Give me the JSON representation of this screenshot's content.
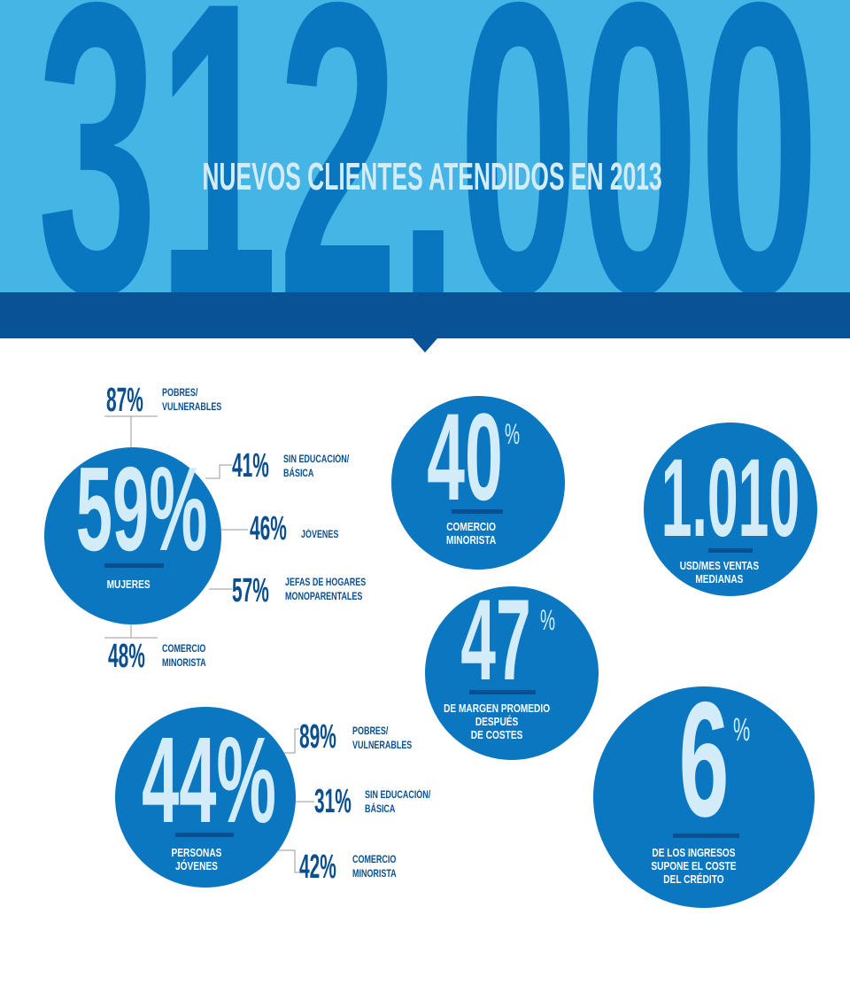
{
  "header": {
    "big_number": "312.000",
    "subtitle": "NUEVOS CLIENTES ATENDIDOS EN 2013"
  },
  "segments": [
    {
      "value": "59%",
      "label": "MUJERES",
      "details": [
        {
          "value": "87%",
          "lines": [
            "POBRES/",
            "VULNERABLES"
          ]
        },
        {
          "value": "41%",
          "lines": [
            "SIN EDUCACIÓN/",
            "BÁSICA"
          ]
        },
        {
          "value": "46%",
          "lines": [
            "JÓVENES"
          ]
        },
        {
          "value": "57%",
          "lines": [
            "JEFAS DE HOGARES",
            "MONOPARENTALES"
          ]
        },
        {
          "value": "48%",
          "lines": [
            "COMERCIO",
            "MINORISTA"
          ]
        }
      ]
    },
    {
      "value": "44%",
      "label_lines": [
        "PERSONAS",
        "JÓVENES"
      ],
      "details": [
        {
          "value": "89%",
          "lines": [
            "POBRES/",
            "VULNERABLES"
          ]
        },
        {
          "value": "31%",
          "lines": [
            "SIN EDUCACIÓN/",
            "BÁSICA"
          ]
        },
        {
          "value": "42%",
          "lines": [
            "COMERCIO",
            "MINORISTA"
          ]
        }
      ]
    }
  ],
  "stats": [
    {
      "value": "40",
      "unit": "%",
      "lines": [
        "COMERCIO",
        "MINORISTA"
      ]
    },
    {
      "value": "1.010",
      "lines": [
        "USD/MES VENTAS",
        "MEDIANAS"
      ]
    },
    {
      "value": "47",
      "unit": "%",
      "lines": [
        "DE MARGEN PROMEDIO",
        "DESPUÉS",
        "DE COSTES"
      ]
    },
    {
      "value": "6",
      "unit": "%",
      "lines": [
        "DE LOS INGRESOS",
        "SUPONE EL COSTE",
        "DEL CRÉDITO"
      ]
    }
  ]
}
